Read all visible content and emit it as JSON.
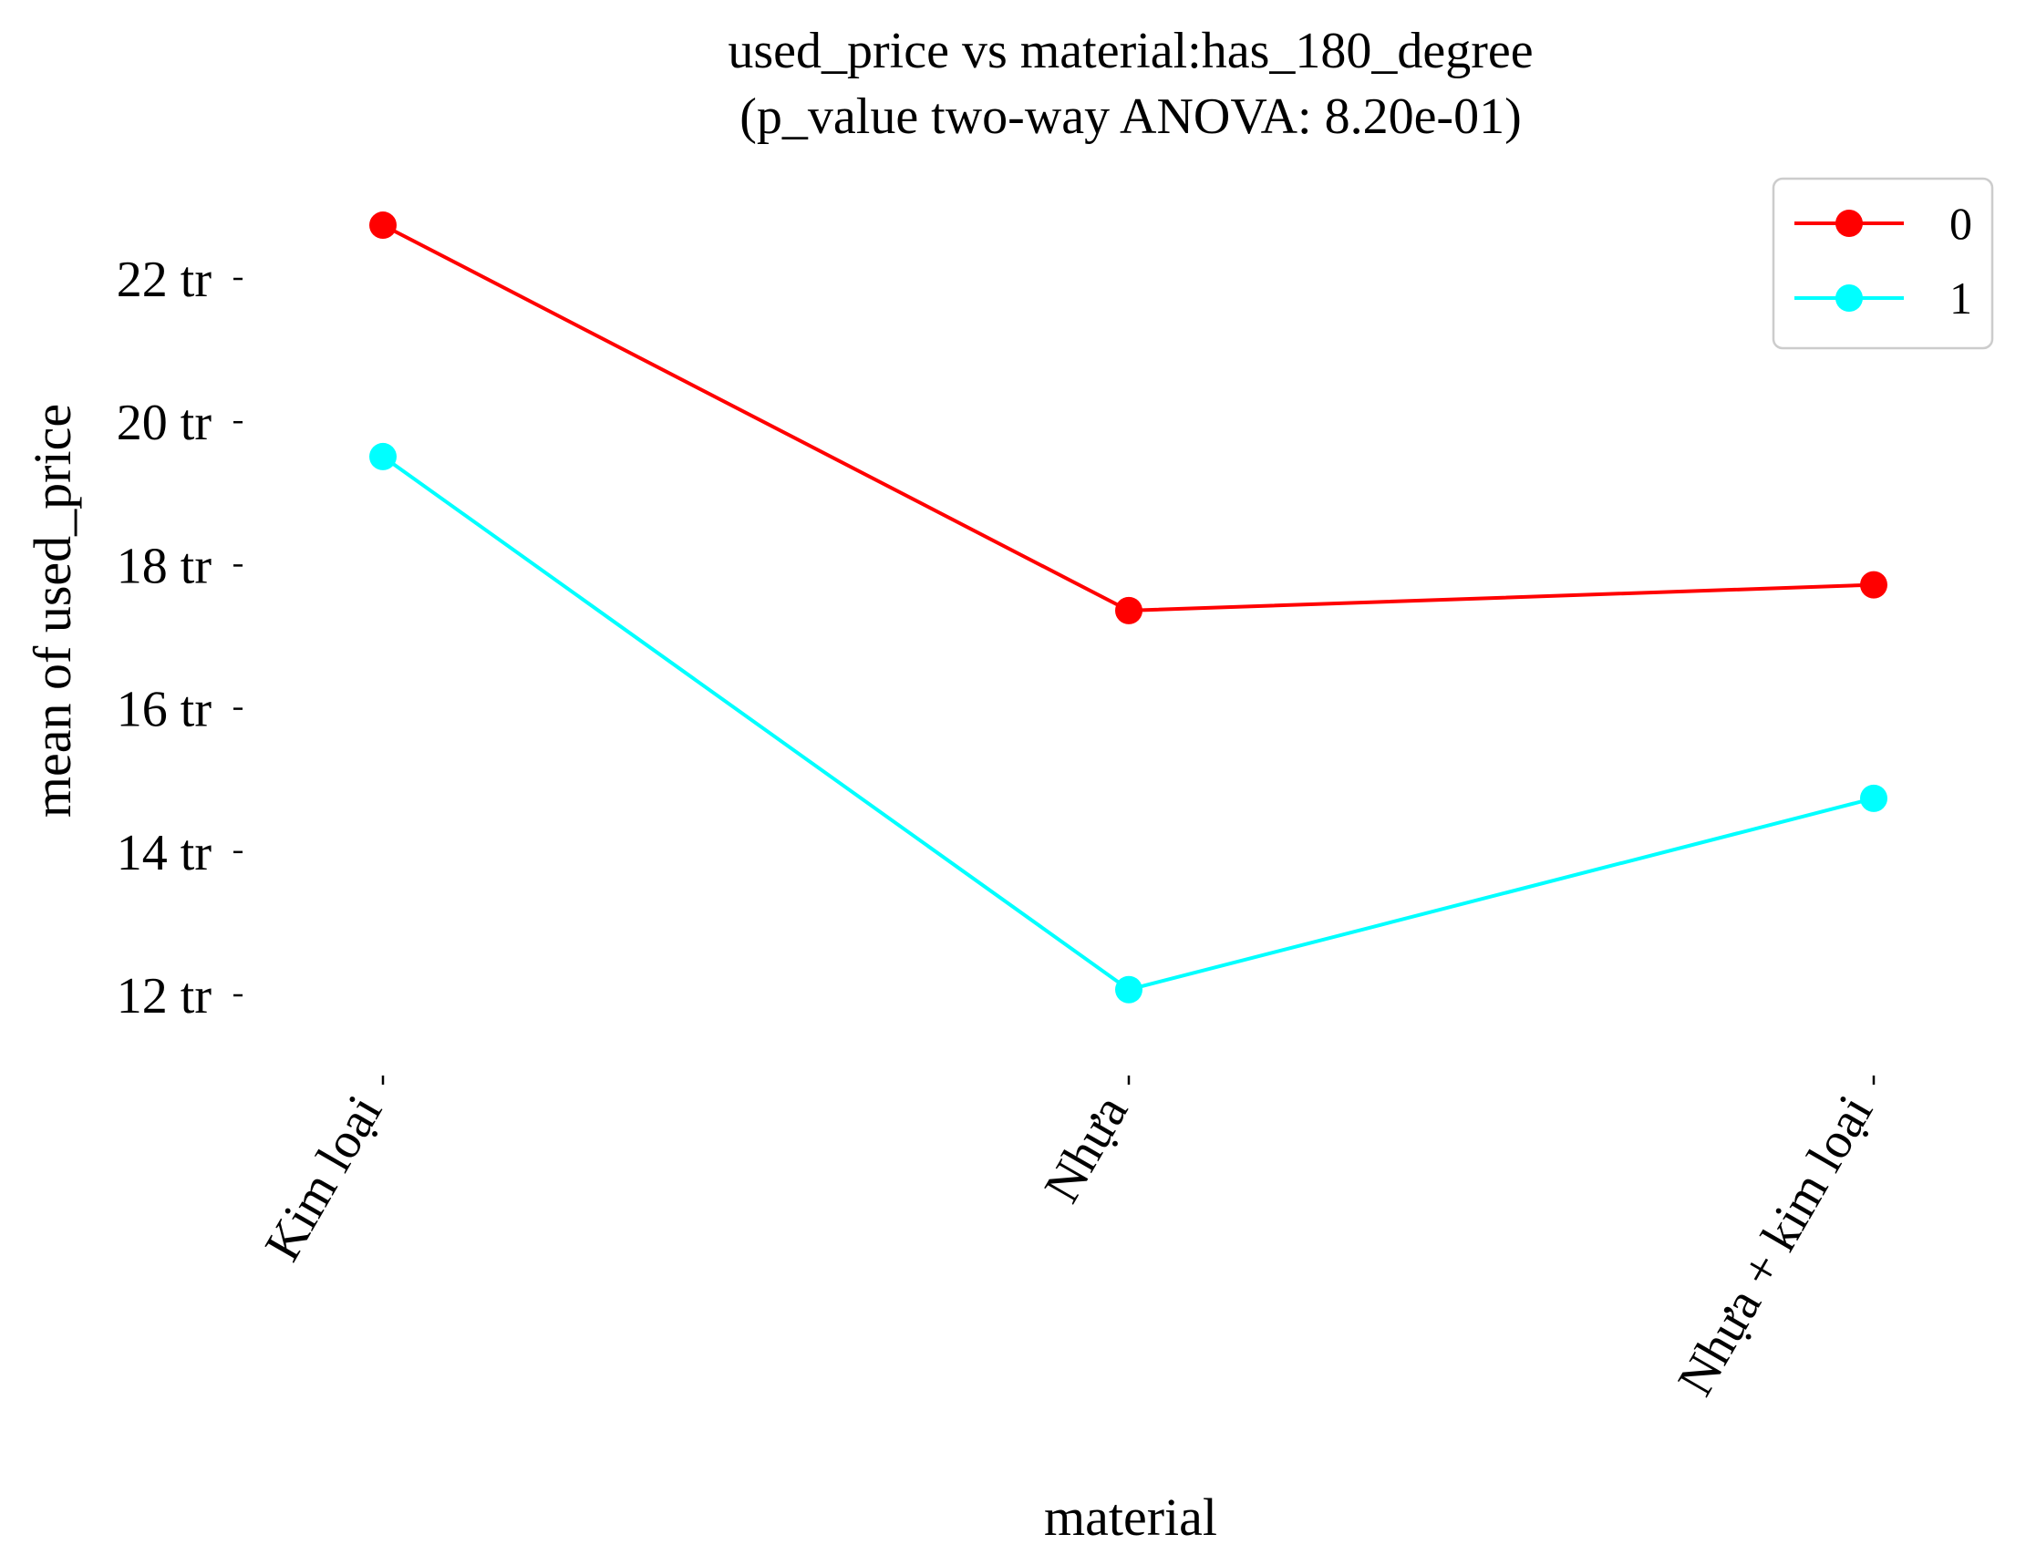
{
  "chart_data": {
    "type": "line",
    "title": "used_price vs material:has_180_degree",
    "subtitle": "(p_value two-way ANOVA: 8.20e-01)",
    "xlabel": "material",
    "ylabel": "mean of used_price",
    "categories": [
      "Kim loại",
      "Nhựa",
      "Nhựa + kim loại"
    ],
    "yticks": [
      {
        "value": 12,
        "label": "12 tr"
      },
      {
        "value": 14,
        "label": "14 tr"
      },
      {
        "value": 16,
        "label": "16 tr"
      },
      {
        "value": 18,
        "label": "18 tr"
      },
      {
        "value": 20,
        "label": "20 tr"
      },
      {
        "value": 22,
        "label": "22 tr"
      }
    ],
    "ylim": [
      11,
      23.5
    ],
    "grid": false,
    "legend_position": "top-right",
    "series": [
      {
        "name": "0",
        "color": "#ff0000",
        "values": [
          22.75,
          17.37,
          17.73
        ]
      },
      {
        "name": "1",
        "color": "#00ffff",
        "values": [
          19.52,
          12.08,
          14.75
        ]
      }
    ]
  }
}
